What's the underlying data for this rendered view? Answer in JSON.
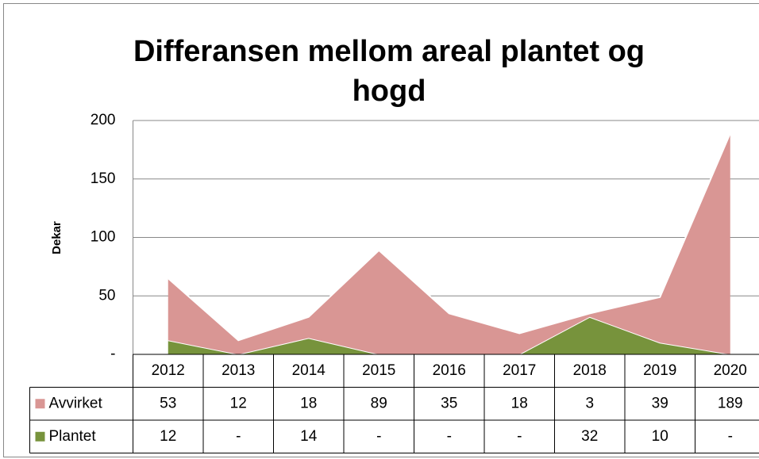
{
  "chart_data": {
    "type": "stacked_area",
    "title": "Differansen mellom areal plantet og hogd",
    "y_label": "Dekar",
    "categories": [
      "2012",
      "2013",
      "2014",
      "2015",
      "2016",
      "2017",
      "2018",
      "2019",
      "2020"
    ],
    "series": [
      {
        "name": "Plantet",
        "color": "#77933c",
        "values": [
          12,
          0,
          14,
          0,
          0,
          0,
          32,
          10,
          0
        ],
        "value_labels": [
          "12",
          "-",
          "14",
          "-",
          "-",
          "-",
          "32",
          "10",
          "-"
        ]
      },
      {
        "name": "Avvirket",
        "color": "#d99694",
        "values": [
          53,
          12,
          18,
          89,
          35,
          18,
          3,
          39,
          189
        ],
        "value_labels": [
          "53",
          "12",
          "18",
          "89",
          "35",
          "18",
          "3",
          "39",
          "189"
        ]
      }
    ],
    "ylim": [
      0,
      200
    ],
    "yticks": [
      {
        "value": 0,
        "label": "-"
      },
      50,
      100,
      150,
      200
    ],
    "grid": true
  }
}
